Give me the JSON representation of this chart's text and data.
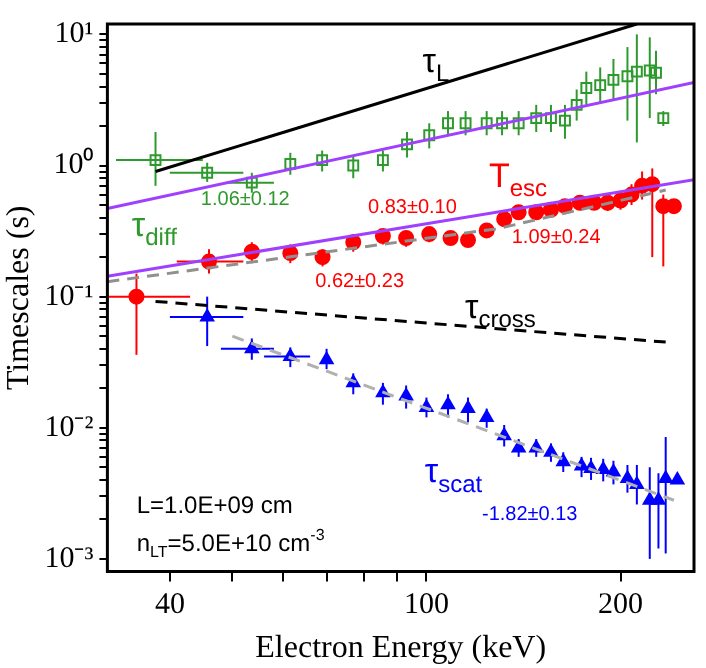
{
  "chart_data": {
    "type": "scatter",
    "xlabel": "Electron Energy (keV)",
    "ylabel": "Timescales (s)",
    "log": "xy",
    "grid": false,
    "legend": false,
    "xlim": [
      32,
      260
    ],
    "ylim": [
      0.0008,
      12
    ],
    "xticks": [
      40,
      {
        "value": 50,
        "label": null
      },
      {
        "value": 60,
        "label": null
      },
      {
        "value": 70,
        "label": null
      },
      {
        "value": 80,
        "label": null
      },
      {
        "value": 90,
        "label": null
      },
      100,
      200
    ],
    "yticks": [
      {
        "value": 0.001,
        "label": "10⁻³"
      },
      {
        "value": 0.002,
        "label": null
      },
      {
        "value": 0.003,
        "label": null
      },
      {
        "value": 0.004,
        "label": null
      },
      {
        "value": 0.005,
        "label": null
      },
      {
        "value": 0.006,
        "label": null
      },
      {
        "value": 0.007,
        "label": null
      },
      {
        "value": 0.008,
        "label": null
      },
      {
        "value": 0.009,
        "label": null
      },
      {
        "value": 0.01,
        "label": "10⁻²"
      },
      {
        "value": 0.02,
        "label": null
      },
      {
        "value": 0.03,
        "label": null
      },
      {
        "value": 0.04,
        "label": null
      },
      {
        "value": 0.05,
        "label": null
      },
      {
        "value": 0.06,
        "label": null
      },
      {
        "value": 0.07,
        "label": null
      },
      {
        "value": 0.08,
        "label": null
      },
      {
        "value": 0.09,
        "label": null
      },
      {
        "value": 0.1,
        "label": "10⁻¹"
      },
      {
        "value": 0.2,
        "label": null
      },
      {
        "value": 0.3,
        "label": null
      },
      {
        "value": 0.4,
        "label": null
      },
      {
        "value": 0.5,
        "label": null
      },
      {
        "value": 0.6,
        "label": null
      },
      {
        "value": 0.7,
        "label": null
      },
      {
        "value": 0.8,
        "label": null
      },
      {
        "value": 0.9,
        "label": null
      },
      {
        "value": 1,
        "label": "10⁰"
      },
      {
        "value": 2,
        "label": null
      },
      {
        "value": 3,
        "label": null
      },
      {
        "value": 4,
        "label": null
      },
      {
        "value": 5,
        "label": null
      },
      {
        "value": 6,
        "label": null
      },
      {
        "value": 7,
        "label": null
      },
      {
        "value": 8,
        "label": null
      },
      {
        "value": 9,
        "label": null
      },
      {
        "value": 10,
        "label": "10¹"
      }
    ],
    "series": [
      {
        "type": "line",
        "name": "τ$_{L}$",
        "color": "#000000",
        "marker": "none",
        "line_style": "solid",
        "x": [
          38,
          212
        ],
        "values": [
          0.9,
          12
        ]
      },
      {
        "type": "line",
        "color": "#a040ff",
        "marker": "none",
        "line_style": "solid",
        "x": [
          32,
          260
        ],
        "values": [
          0.47,
          4.3
        ]
      },
      {
        "type": "line",
        "color": "#a040ff",
        "marker": "none",
        "line_style": "solid",
        "x": [
          32,
          260
        ],
        "values": [
          0.143,
          0.78
        ]
      },
      {
        "type": "line",
        "color": "#909090",
        "marker": "none",
        "line_style": "dashed",
        "x": [
          32,
          129,
          235
        ],
        "values": [
          0.13,
          0.33,
          0.65
        ]
      },
      {
        "type": "line",
        "color": "#b0b0b0",
        "marker": "none",
        "line_style": "dashed",
        "x": [
          50,
          242
        ],
        "values": [
          0.05,
          0.0028
        ]
      },
      {
        "type": "line",
        "name": "τ$_{cross}$",
        "color": "#000000",
        "marker": "none",
        "line_style": "dashed",
        "x": [
          38,
          235
        ],
        "values": [
          0.092,
          0.045
        ]
      },
      {
        "name": "τ$_{diff}$",
        "color": "#2e9a2e",
        "marker": "square",
        "x": [
          38,
          45.7,
          53.6,
          61.5,
          68.9,
          77,
          85.6,
          93.3,
          101,
          108,
          115,
          124,
          131,
          139,
          148,
          156,
          164,
          171,
          177,
          186,
          195,
          205,
          212,
          222,
          227,
          233
        ],
        "values": [
          1.1,
          0.88,
          0.74,
          1.03,
          1.1,
          1.0,
          1.1,
          1.45,
          1.7,
          2.1,
          2.1,
          2.1,
          2.1,
          2.1,
          2.3,
          2.3,
          2.2,
          2.9,
          3.9,
          4.1,
          4.5,
          4.8,
          5.2,
          5.3,
          5.1,
          2.3
        ],
        "errors": [
          [
            0.7,
            1.8
          ],
          [
            0.75,
            1.05
          ],
          [
            0.62,
            0.88
          ],
          [
            0.85,
            1.25
          ],
          [
            0.9,
            1.3
          ],
          [
            0.8,
            1.2
          ],
          [
            0.9,
            1.3
          ],
          [
            1.15,
            1.8
          ],
          [
            1.35,
            2.1
          ],
          [
            1.7,
            2.6
          ],
          [
            1.7,
            2.6
          ],
          [
            1.7,
            2.6
          ],
          [
            1.7,
            2.6
          ],
          [
            1.7,
            2.6
          ],
          [
            1.8,
            2.9
          ],
          [
            1.8,
            2.9
          ],
          [
            1.6,
            2.9
          ],
          [
            2.2,
            3.8
          ],
          [
            2.9,
            5.2
          ],
          [
            3.0,
            5.6
          ],
          [
            3.2,
            6.5
          ],
          [
            2.2,
            8
          ],
          [
            1.5,
            10
          ],
          [
            2.3,
            9.5
          ],
          [
            3.5,
            7.5
          ],
          [
            2.0,
            2.6
          ]
        ],
        "xerrors": [
          [
            33,
            45
          ],
          [
            40,
            52
          ],
          [
            49,
            58
          ],
          null,
          null,
          null,
          null,
          null,
          null,
          null,
          null,
          null,
          null,
          null,
          null,
          null,
          null,
          null,
          null,
          null,
          null,
          null,
          null,
          null,
          null,
          null
        ]
      },
      {
        "name": "T$_{esc}$",
        "color": "#ff0000",
        "marker": "circle",
        "x": [
          35.5,
          46,
          53.6,
          61.5,
          69,
          77,
          85.6,
          93,
          101,
          109,
          116,
          124,
          132,
          139,
          148,
          156,
          164,
          173,
          182,
          191,
          200,
          208,
          216,
          224,
          233,
          242
        ],
        "values": [
          0.1,
          0.185,
          0.22,
          0.215,
          0.2,
          0.26,
          0.29,
          0.28,
          0.3,
          0.28,
          0.27,
          0.32,
          0.39,
          0.44,
          0.44,
          0.46,
          0.49,
          0.52,
          0.52,
          0.52,
          0.54,
          0.6,
          0.7,
          0.72,
          0.49,
          0.49
        ],
        "errors": [
          [
            0.036,
            0.15
          ],
          [
            0.15,
            0.23
          ],
          [
            0.18,
            0.26
          ],
          [
            0.18,
            0.25
          ],
          [
            0.17,
            0.23
          ],
          [
            0.22,
            0.3
          ],
          [
            0.25,
            0.33
          ],
          [
            0.24,
            0.32
          ],
          [
            0.26,
            0.34
          ],
          [
            0.25,
            0.31
          ],
          [
            0.24,
            0.3
          ],
          [
            0.28,
            0.36
          ],
          [
            0.35,
            0.43
          ],
          [
            0.4,
            0.48
          ],
          [
            0.4,
            0.48
          ],
          [
            0.42,
            0.5
          ],
          [
            0.44,
            0.54
          ],
          [
            0.46,
            0.58
          ],
          [
            0.46,
            0.58
          ],
          [
            0.45,
            0.6
          ],
          [
            0.46,
            0.62
          ],
          [
            0.5,
            0.72
          ],
          [
            0.55,
            0.9
          ],
          [
            0.2,
            0.95
          ],
          [
            0.17,
            0.6
          ],
          null
        ],
        "xerrors": [
          [
            32,
            43
          ],
          [
            41,
            52
          ],
          null,
          null,
          null,
          null,
          null,
          null,
          null,
          null,
          null,
          null,
          null,
          null,
          null,
          null,
          null,
          null,
          null,
          null,
          null,
          null,
          null,
          null,
          null,
          null
        ]
      },
      {
        "name": "τ$_{scat}$",
        "color": "#0000ff",
        "marker": "triangle",
        "x": [
          45.7,
          53.6,
          61.5,
          70,
          77,
          85.6,
          93,
          100,
          108,
          116,
          124,
          132,
          139,
          148,
          156,
          163,
          174,
          180,
          188,
          195,
          205,
          212,
          222,
          229,
          235,
          245
        ],
        "values": [
          0.07,
          0.04,
          0.035,
          0.033,
          0.022,
          0.0185,
          0.0175,
          0.0143,
          0.015,
          0.014,
          0.012,
          0.0087,
          0.007,
          0.007,
          0.0065,
          0.0055,
          0.0051,
          0.0049,
          0.0048,
          0.0046,
          0.0041,
          0.0037,
          0.0028,
          0.0028,
          0.0041,
          0.004
        ],
        "errors": [
          [
            0.042,
            0.1
          ],
          [
            0.033,
            0.048
          ],
          [
            0.029,
            0.041
          ],
          [
            0.028,
            0.04
          ],
          [
            0.018,
            0.026
          ],
          [
            0.015,
            0.022
          ],
          [
            0.014,
            0.021
          ],
          [
            0.012,
            0.017
          ],
          [
            0.012,
            0.018
          ],
          [
            0.011,
            0.017
          ],
          [
            0.01,
            0.014
          ],
          [
            0.0072,
            0.0105
          ],
          [
            0.006,
            0.0082
          ],
          [
            0.006,
            0.0082
          ],
          [
            0.0055,
            0.0076
          ],
          [
            0.0046,
            0.0065
          ],
          [
            0.0042,
            0.006
          ],
          [
            0.004,
            0.0059
          ],
          [
            0.0039,
            0.0058
          ],
          [
            0.0037,
            0.0056
          ],
          [
            0.0032,
            0.0052
          ],
          [
            0.0026,
            0.0052
          ],
          [
            0.001,
            0.005
          ],
          [
            0.0012,
            0.0045
          ],
          [
            0.0011,
            0.0085
          ],
          null
        ],
        "xerrors": [
          [
            40,
            52
          ],
          [
            48,
            58
          ],
          [
            56,
            66
          ],
          null,
          null,
          null,
          null,
          null,
          null,
          null,
          null,
          null,
          null,
          null,
          null,
          null,
          null,
          null,
          null,
          null,
          null,
          null,
          null,
          null,
          null,
          null
        ]
      }
    ],
    "annotations": [
      "1.06±0.12",
      "0.83±0.10",
      "0.62±0.23",
      "1.09±0.24",
      "-1.82±0.13",
      "L=1.0E+09 cm",
      "n$_{LT}$=5.0E+10 cm$^{-3}$"
    ]
  }
}
